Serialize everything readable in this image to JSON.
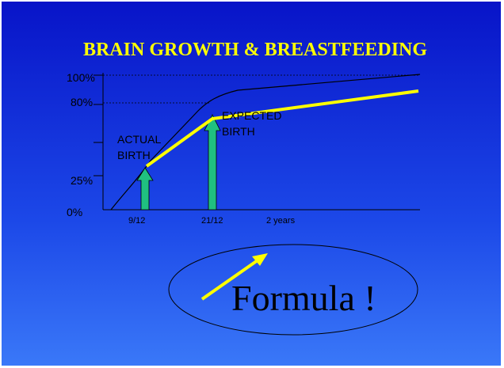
{
  "slide": {
    "title": "BRAIN GROWTH  &  BREASTFEEDING",
    "y_labels": [
      "100%",
      "80%",
      "25%",
      "0%"
    ],
    "x_labels": [
      "9/12",
      "21/12",
      "2 years"
    ],
    "annotations": [
      {
        "lines": [
          "ACTUAL",
          "BIRTH"
        ]
      },
      {
        "lines": [
          "EXPECTED",
          "BIRTH"
        ]
      }
    ],
    "callout": "Formula !"
  }
}
